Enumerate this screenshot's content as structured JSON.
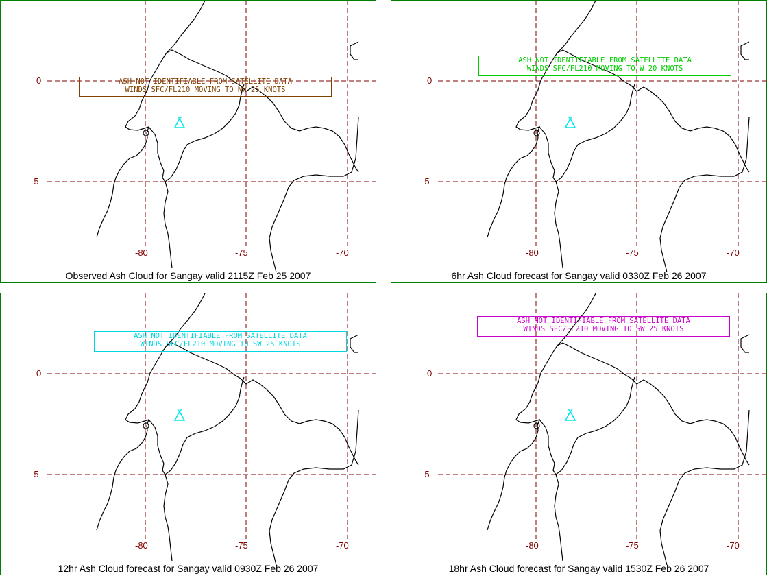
{
  "colors": {
    "frame": "#008000",
    "grid": "#800000",
    "coast": "#000000"
  },
  "gridlabels": {
    "lat": [
      "0",
      "-5"
    ],
    "lon": [
      "-80",
      "-75",
      "-70"
    ]
  },
  "volcano_icon": "volcano-triangle-icon",
  "panels": [
    {
      "caption": "Observed Ash Cloud for Sangay valid 2115Z Feb 25 2007",
      "notice_color": "#804000",
      "notice_line1": "ASH NOT IDENTIFIABLE FROM SATELLITE DATA",
      "notice_line2": "WINDS SFC/FL210 MOVING TO NW 25 KNOTS",
      "icon_color": "#00e5ee"
    },
    {
      "caption": "6hr Ash Cloud forecast for Sangay valid 0330Z Feb 26 2007",
      "notice_color": "#00cc00",
      "notice_line1": "ASH NOT IDENTIFIABLE FROM SATELLITE DATA",
      "notice_line2": "WINDS SFC/FL210 MOVING TO W 20 KNOTS",
      "icon_color": "#00e5ee"
    },
    {
      "caption": "12hr Ash Cloud forecast for Sangay valid 0930Z Feb 26 2007",
      "notice_color": "#00d6e0",
      "notice_line1": "ASH NOT IDENTIFIABLE FROM SATELLITE DATA",
      "notice_line2": "WINDS SFC/FL210 MOVING TO SW 25 KNOTS",
      "icon_color": "#00e5ee"
    },
    {
      "caption": "18hr Ash Cloud forecast for Sangay valid 1530Z Feb 26 2007",
      "notice_color": "#cc00cc",
      "notice_line1": "ASH NOT IDENTIFIABLE FROM SATELLITE DATA",
      "notice_line2": "WINDS SFC/FL210 MOVING TO SW 25 KNOTS",
      "icon_color": "#00e5ee"
    }
  ]
}
